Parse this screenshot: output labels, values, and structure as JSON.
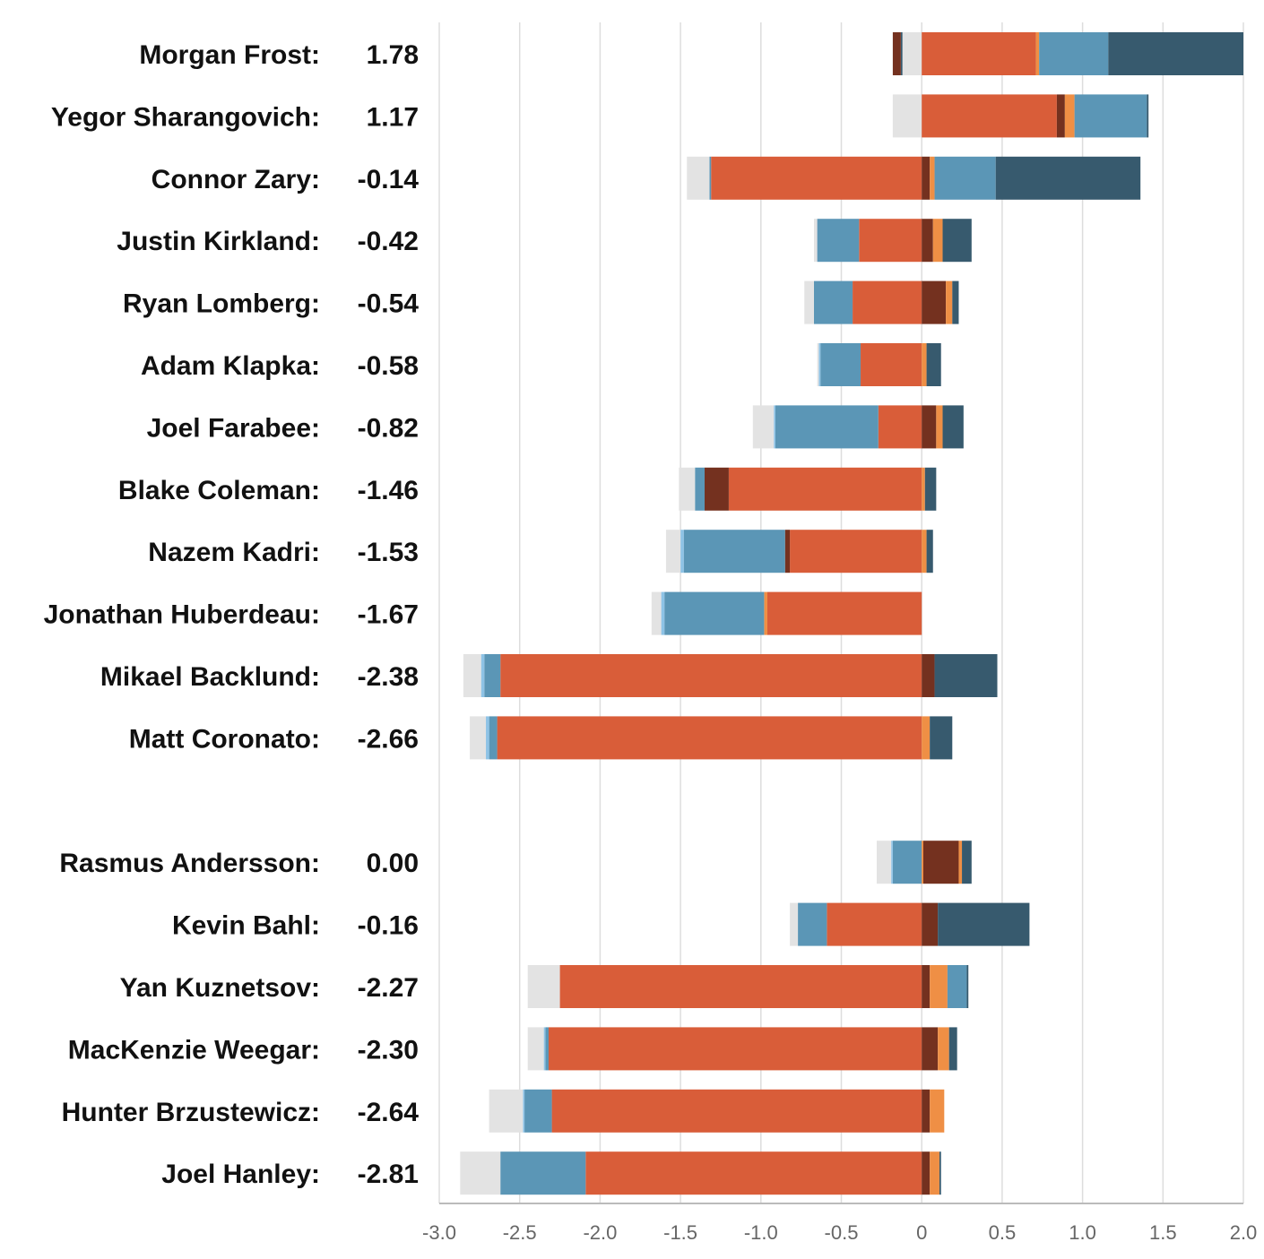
{
  "chart_data": {
    "type": "bar",
    "stacked": true,
    "diverging": true,
    "orientation": "horizontal",
    "xlim": [
      -3.0,
      2.0
    ],
    "xticks": [
      "-3.0",
      "-2.5",
      "-2.0",
      "-1.5",
      "-1.0",
      "-0.5",
      "0",
      "0.5",
      "1.0",
      "1.5",
      "2.0"
    ],
    "grid": true,
    "legend": "none",
    "segment_colors": {
      "light-gray": "#e3e3e3",
      "light-blue": "#8ec3e6",
      "steel-blue": "#5b96b6",
      "dark-slate": "#375a6e",
      "orange": "#ef8f45",
      "brown": "#74311f",
      "red-orange": "#d95d39"
    },
    "groups": [
      {
        "rows": [
          {
            "name": "Morgan Frost:",
            "value": "1.78",
            "negative": [
              {
                "c": "light-gray",
                "v": 0.12
              },
              {
                "c": "dark-slate",
                "v": 0.01
              },
              {
                "c": "brown",
                "v": 0.05
              }
            ],
            "positive": [
              {
                "c": "red-orange",
                "v": 0.71
              },
              {
                "c": "orange",
                "v": 0.02
              },
              {
                "c": "steel-blue",
                "v": 0.43
              },
              {
                "c": "dark-slate",
                "v": 0.84
              }
            ]
          },
          {
            "name": "Yegor Sharangovich:",
            "value": "1.17",
            "negative": [
              {
                "c": "light-gray",
                "v": 0.18
              }
            ],
            "positive": [
              {
                "c": "red-orange",
                "v": 0.84
              },
              {
                "c": "brown",
                "v": 0.05
              },
              {
                "c": "orange",
                "v": 0.06
              },
              {
                "c": "steel-blue",
                "v": 0.45
              },
              {
                "c": "dark-slate",
                "v": 0.01
              }
            ]
          },
          {
            "name": "Connor Zary:",
            "value": "-0.14",
            "negative": [
              {
                "c": "red-orange",
                "v": 1.31
              },
              {
                "c": "steel-blue",
                "v": 0.01
              },
              {
                "c": "light-gray",
                "v": 0.14
              }
            ],
            "positive": [
              {
                "c": "brown",
                "v": 0.05
              },
              {
                "c": "orange",
                "v": 0.03
              },
              {
                "c": "steel-blue",
                "v": 0.38
              },
              {
                "c": "dark-slate",
                "v": 0.9
              }
            ]
          },
          {
            "name": "Justin Kirkland:",
            "value": "-0.42",
            "negative": [
              {
                "c": "red-orange",
                "v": 0.39
              },
              {
                "c": "steel-blue",
                "v": 0.26
              },
              {
                "c": "light-gray",
                "v": 0.02
              }
            ],
            "positive": [
              {
                "c": "brown",
                "v": 0.07
              },
              {
                "c": "orange",
                "v": 0.06
              },
              {
                "c": "dark-slate",
                "v": 0.18
              }
            ]
          },
          {
            "name": "Ryan Lomberg:",
            "value": "-0.54",
            "negative": [
              {
                "c": "red-orange",
                "v": 0.43
              },
              {
                "c": "steel-blue",
                "v": 0.24
              },
              {
                "c": "light-gray",
                "v": 0.06
              }
            ],
            "positive": [
              {
                "c": "brown",
                "v": 0.15
              },
              {
                "c": "orange",
                "v": 0.04
              },
              {
                "c": "dark-slate",
                "v": 0.04
              }
            ]
          },
          {
            "name": "Adam Klapka:",
            "value": "-0.58",
            "negative": [
              {
                "c": "red-orange",
                "v": 0.38
              },
              {
                "c": "steel-blue",
                "v": 0.25
              },
              {
                "c": "light-blue",
                "v": 0.01
              },
              {
                "c": "light-gray",
                "v": 0.01
              }
            ],
            "positive": [
              {
                "c": "orange",
                "v": 0.03
              },
              {
                "c": "dark-slate",
                "v": 0.09
              }
            ]
          },
          {
            "name": "Joel Farabee:",
            "value": "-0.82",
            "negative": [
              {
                "c": "red-orange",
                "v": 0.27
              },
              {
                "c": "steel-blue",
                "v": 0.64
              },
              {
                "c": "light-blue",
                "v": 0.01
              },
              {
                "c": "light-gray",
                "v": 0.13
              }
            ],
            "positive": [
              {
                "c": "brown",
                "v": 0.09
              },
              {
                "c": "orange",
                "v": 0.04
              },
              {
                "c": "dark-slate",
                "v": 0.13
              }
            ]
          },
          {
            "name": "Blake Coleman:",
            "value": "-1.46",
            "negative": [
              {
                "c": "red-orange",
                "v": 1.2
              },
              {
                "c": "brown",
                "v": 0.15
              },
              {
                "c": "steel-blue",
                "v": 0.06
              },
              {
                "c": "light-gray",
                "v": 0.1
              }
            ],
            "positive": [
              {
                "c": "orange",
                "v": 0.02
              },
              {
                "c": "dark-slate",
                "v": 0.07
              }
            ]
          },
          {
            "name": "Nazem Kadri:",
            "value": "-1.53",
            "negative": [
              {
                "c": "red-orange",
                "v": 0.82
              },
              {
                "c": "brown",
                "v": 0.03
              },
              {
                "c": "steel-blue",
                "v": 0.63
              },
              {
                "c": "light-blue",
                "v": 0.02
              },
              {
                "c": "light-gray",
                "v": 0.09
              }
            ],
            "positive": [
              {
                "c": "orange",
                "v": 0.03
              },
              {
                "c": "dark-slate",
                "v": 0.04
              }
            ]
          },
          {
            "name": "Jonathan Huberdeau:",
            "value": "-1.67",
            "negative": [
              {
                "c": "red-orange",
                "v": 0.96
              },
              {
                "c": "orange",
                "v": 0.02
              },
              {
                "c": "steel-blue",
                "v": 0.62
              },
              {
                "c": "light-blue",
                "v": 0.02
              },
              {
                "c": "light-gray",
                "v": 0.06
              }
            ],
            "positive": []
          },
          {
            "name": "Mikael Backlund:",
            "value": "-2.38",
            "negative": [
              {
                "c": "red-orange",
                "v": 2.62
              },
              {
                "c": "steel-blue",
                "v": 0.1
              },
              {
                "c": "light-blue",
                "v": 0.02
              },
              {
                "c": "light-gray",
                "v": 0.11
              }
            ],
            "positive": [
              {
                "c": "brown",
                "v": 0.08
              },
              {
                "c": "dark-slate",
                "v": 0.39
              }
            ]
          },
          {
            "name": "Matt Coronato:",
            "value": "-2.66",
            "negative": [
              {
                "c": "red-orange",
                "v": 2.64
              },
              {
                "c": "steel-blue",
                "v": 0.05
              },
              {
                "c": "light-blue",
                "v": 0.02
              },
              {
                "c": "light-gray",
                "v": 0.1
              }
            ],
            "positive": [
              {
                "c": "orange",
                "v": 0.05
              },
              {
                "c": "dark-slate",
                "v": 0.14
              }
            ]
          }
        ]
      },
      {
        "rows": [
          {
            "name": "Rasmus Andersson:",
            "value": "0.00",
            "negative": [
              {
                "c": "steel-blue",
                "v": 0.18
              },
              {
                "c": "light-blue",
                "v": 0.01
              },
              {
                "c": "light-gray",
                "v": 0.09
              }
            ],
            "positive": [
              {
                "c": "orange",
                "v": 0.01
              },
              {
                "c": "brown",
                "v": 0.22
              },
              {
                "c": "orange",
                "v": 0.02
              },
              {
                "c": "dark-slate",
                "v": 0.06
              }
            ]
          },
          {
            "name": "Kevin Bahl:",
            "value": "-0.16",
            "negative": [
              {
                "c": "red-orange",
                "v": 0.59
              },
              {
                "c": "steel-blue",
                "v": 0.18
              },
              {
                "c": "light-gray",
                "v": 0.05
              }
            ],
            "positive": [
              {
                "c": "brown",
                "v": 0.1
              },
              {
                "c": "dark-slate",
                "v": 0.57
              }
            ]
          },
          {
            "name": "Yan Kuznetsov:",
            "value": "-2.27",
            "negative": [
              {
                "c": "red-orange",
                "v": 2.25
              },
              {
                "c": "light-gray",
                "v": 0.2
              }
            ],
            "positive": [
              {
                "c": "brown",
                "v": 0.05
              },
              {
                "c": "orange",
                "v": 0.11
              },
              {
                "c": "steel-blue",
                "v": 0.12
              },
              {
                "c": "dark-slate",
                "v": 0.01
              }
            ]
          },
          {
            "name": "MacKenzie Weegar:",
            "value": "-2.30",
            "negative": [
              {
                "c": "red-orange",
                "v": 2.32
              },
              {
                "c": "steel-blue",
                "v": 0.02
              },
              {
                "c": "light-blue",
                "v": 0.01
              },
              {
                "c": "light-gray",
                "v": 0.1
              }
            ],
            "positive": [
              {
                "c": "brown",
                "v": 0.1
              },
              {
                "c": "orange",
                "v": 0.07
              },
              {
                "c": "dark-slate",
                "v": 0.05
              }
            ]
          },
          {
            "name": "Hunter Brzustewicz:",
            "value": "-2.64",
            "negative": [
              {
                "c": "red-orange",
                "v": 2.3
              },
              {
                "c": "steel-blue",
                "v": 0.17
              },
              {
                "c": "light-blue",
                "v": 0.01
              },
              {
                "c": "light-gray",
                "v": 0.21
              }
            ],
            "positive": [
              {
                "c": "brown",
                "v": 0.05
              },
              {
                "c": "orange",
                "v": 0.09
              }
            ]
          },
          {
            "name": "Joel Hanley:",
            "value": "-2.81",
            "negative": [
              {
                "c": "red-orange",
                "v": 2.09
              },
              {
                "c": "steel-blue",
                "v": 0.53
              },
              {
                "c": "light-gray",
                "v": 0.25
              }
            ],
            "positive": [
              {
                "c": "brown",
                "v": 0.05
              },
              {
                "c": "orange",
                "v": 0.06
              },
              {
                "c": "dark-slate",
                "v": 0.01
              }
            ]
          }
        ]
      }
    ]
  }
}
